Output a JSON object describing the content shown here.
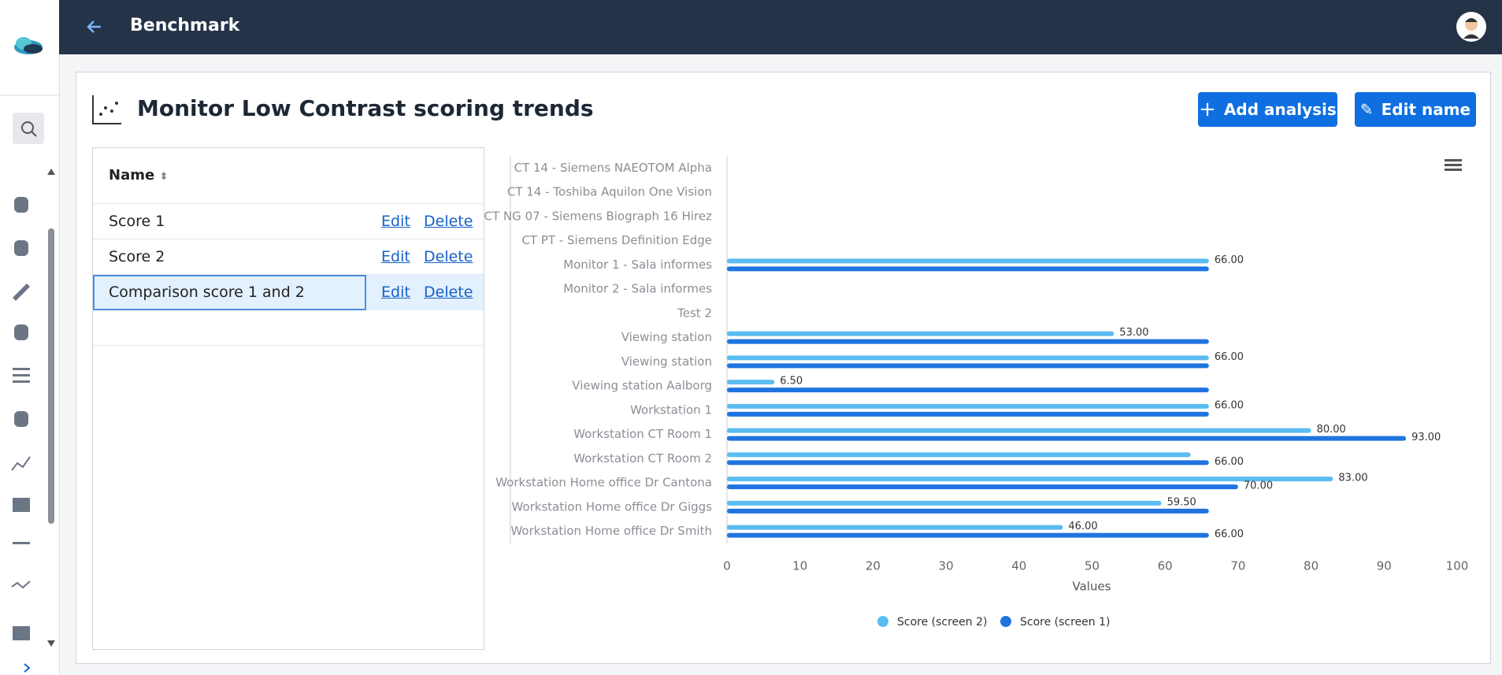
{
  "header": {
    "title": "Benchmark"
  },
  "panel": {
    "title": "Monitor Low Contrast scoring trends",
    "buttons": [
      "Add analysis",
      "Edit name"
    ]
  },
  "table": {
    "columns": [
      "Name"
    ],
    "rows": [
      [
        "Score 1",
        "Edit",
        "Delete"
      ],
      [
        "Score 2",
        "Edit",
        "Delete"
      ],
      [
        "Comparison score 1 and 2",
        "Edit",
        "Delete"
      ]
    ]
  },
  "chart_data": {
    "type": "bar",
    "orientation": "horizontal",
    "x_label": "Values",
    "categories": [
      "CT 14 - Siemens NAEOTOM Alpha",
      "CT 14 - Toshiba Aquilon One Vision",
      "CT NG 07 - Siemens Biograph 16 Hirez",
      "CT PT - Siemens Definition Edge",
      "Monitor 1 - Sala informes",
      "Monitor 2 - Sala informes",
      "Test 2",
      "Viewing station",
      "Viewing station",
      "Viewing station Aalborg",
      "Workstation 1",
      "Workstation CT Room 1",
      "Workstation CT Room 2",
      "Workstation Home office Dr Cantona",
      "Workstation Home office Dr Giggs",
      "Workstation Home office Dr Smith"
    ],
    "series": [
      {
        "name": "Score (screen 2)",
        "color": "#5bbcf0",
        "values": [
          null,
          null,
          null,
          null,
          66,
          null,
          null,
          53,
          66,
          6.5,
          66,
          80,
          63.5,
          83,
          59.5,
          46
        ],
        "value_labels": [
          null,
          null,
          null,
          null,
          "66.00",
          null,
          null,
          "53.00",
          "66.00",
          "6.50",
          "66.00",
          "80.00",
          null,
          "83.00",
          "59.50",
          "46.00"
        ]
      },
      {
        "name": "Score (screen 1)",
        "color": "#1f74e0",
        "values": [
          null,
          null,
          null,
          null,
          66,
          null,
          null,
          66,
          66,
          66,
          66,
          93,
          66,
          70,
          66,
          66
        ],
        "value_labels": [
          null,
          null,
          null,
          null,
          null,
          null,
          null,
          null,
          null,
          null,
          null,
          "93.00",
          "66.00",
          "70.00",
          null,
          "66.00"
        ]
      }
    ],
    "xlim": [
      0,
      100
    ],
    "xticks": [
      0,
      10,
      20,
      30,
      40,
      50,
      60,
      70,
      80,
      90,
      100
    ],
    "grid": false
  }
}
